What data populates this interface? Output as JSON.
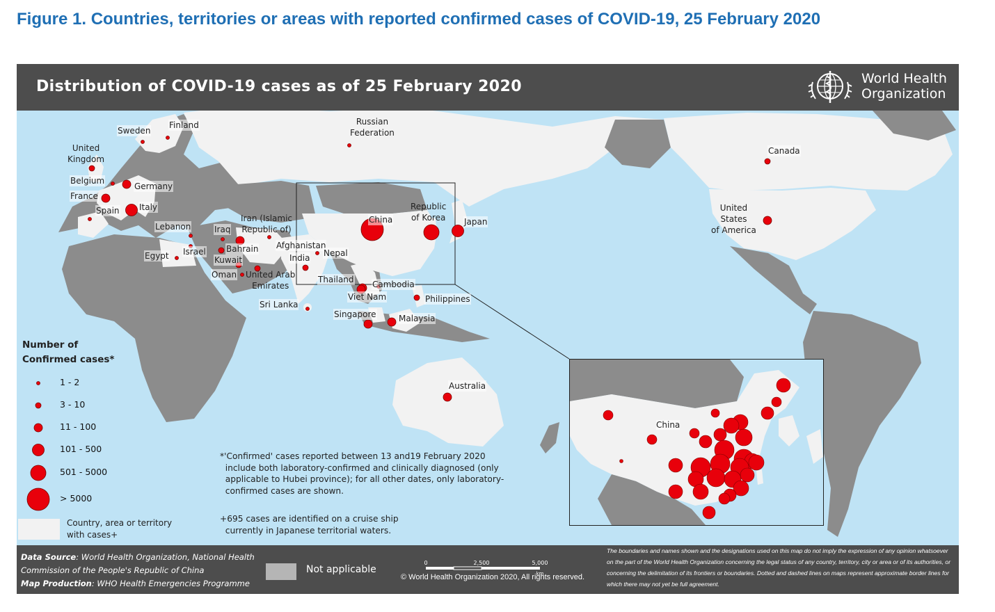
{
  "figure_title": "Figure 1. Countries, territories or areas with reported confirmed cases of COVID-19, 25 February 2020",
  "map_title": "Distribution of COVID-19 cases as of 25 February 2020",
  "who_logo": {
    "icon": "who-emblem-icon",
    "line1": "World Health",
    "line2": "Organization"
  },
  "colors": {
    "ocean": "#bfe3f5",
    "affected": "#f2f2f2",
    "unaffected": "#8c8c8c",
    "not_applicable": "#b5b5b5",
    "bubble": "#e8000b",
    "bar": "#4d4d4d"
  },
  "legend": {
    "title_line1": "Number of",
    "title_line2": "Confirmed cases*",
    "classes": [
      {
        "label": "1 - 2"
      },
      {
        "label": "3 - 10"
      },
      {
        "label": "11 - 100"
      },
      {
        "label": "101 - 500"
      },
      {
        "label": "501 - 5000"
      },
      {
        "label": "> 5000"
      }
    ],
    "country_swatch_label": "Country, area or territory\nwith cases+"
  },
  "countries": [
    {
      "name": "Sweden",
      "cls": 0
    },
    {
      "name": "Finland",
      "cls": 0
    },
    {
      "name": "Russian\nFederation",
      "cls": 0
    },
    {
      "name": "United\nKingdom",
      "cls": 1
    },
    {
      "name": "Belgium",
      "cls": 0
    },
    {
      "name": "Germany",
      "cls": 2
    },
    {
      "name": "France",
      "cls": 2
    },
    {
      "name": "Spain",
      "cls": 0
    },
    {
      "name": "Italy",
      "cls": 3
    },
    {
      "name": "Lebanon",
      "cls": 0
    },
    {
      "name": "Israel",
      "cls": 0
    },
    {
      "name": "Egypt",
      "cls": 0
    },
    {
      "name": "Iraq",
      "cls": 0
    },
    {
      "name": "Iran (Islamic\nRepublic of)",
      "cls": 2
    },
    {
      "name": "Bahrain",
      "cls": 1
    },
    {
      "name": "Kuwait",
      "cls": 1
    },
    {
      "name": "Oman",
      "cls": 0
    },
    {
      "name": "United Arab\nEmirates",
      "cls": 1
    },
    {
      "name": "Afghanistan",
      "cls": 0
    },
    {
      "name": "India",
      "cls": 1
    },
    {
      "name": "Nepal",
      "cls": 0
    },
    {
      "name": "Sri Lanka",
      "cls": 0
    },
    {
      "name": "China",
      "cls": 5
    },
    {
      "name": "Republic\nof Korea",
      "cls": 4
    },
    {
      "name": "Japan",
      "cls": 3
    },
    {
      "name": "Thailand",
      "cls": 2
    },
    {
      "name": "Cambodia",
      "cls": 0
    },
    {
      "name": "Viet Nam",
      "cls": 2
    },
    {
      "name": "Philippines",
      "cls": 1
    },
    {
      "name": "Singapore",
      "cls": 2
    },
    {
      "name": "Malaysia",
      "cls": 2
    },
    {
      "name": "Australia",
      "cls": 2
    },
    {
      "name": "Canada",
      "cls": 1
    },
    {
      "name": "United\nStates\nof America",
      "cls": 2
    }
  ],
  "inset": {
    "china_label": "China"
  },
  "notes": {
    "confirmed": "*'Confirmed' cases reported between 13 and19 February 2020\n  include both laboratory-confirmed and clinically diagnosed (only\n  applicable to Hubei province); for all other dates, only laboratory-\n  confirmed cases are shown.",
    "cruise": "+695 cases are identified on a cruise ship\n  currently in Japanese territorial waters."
  },
  "footer": {
    "data_source_label": "Data Source",
    "data_source_text": ": World Health Organization, National Health Commission of the People's Republic of China",
    "map_production_label": "Map Production",
    "map_production_text": ": WHO Health Emergencies Programme",
    "not_applicable": "Not applicable",
    "scale": {
      "t0": "0",
      "t1": "2,500",
      "t2": "5,000",
      "unit": "km"
    },
    "copyright": "© World Health Organization 2020, All rights reserved.",
    "disclaimer": "The boundaries and names shown and the designations used on this map do not imply the expression of any opinion whatsoever on the part of the World Health Organization concerning the legal status of any country, territory, city or area or of its authorities, or concerning the delimitation of its frontiers or boundaries. Dotted and dashed lines on maps represent approximate border lines for which there may not yet be full agreement."
  }
}
